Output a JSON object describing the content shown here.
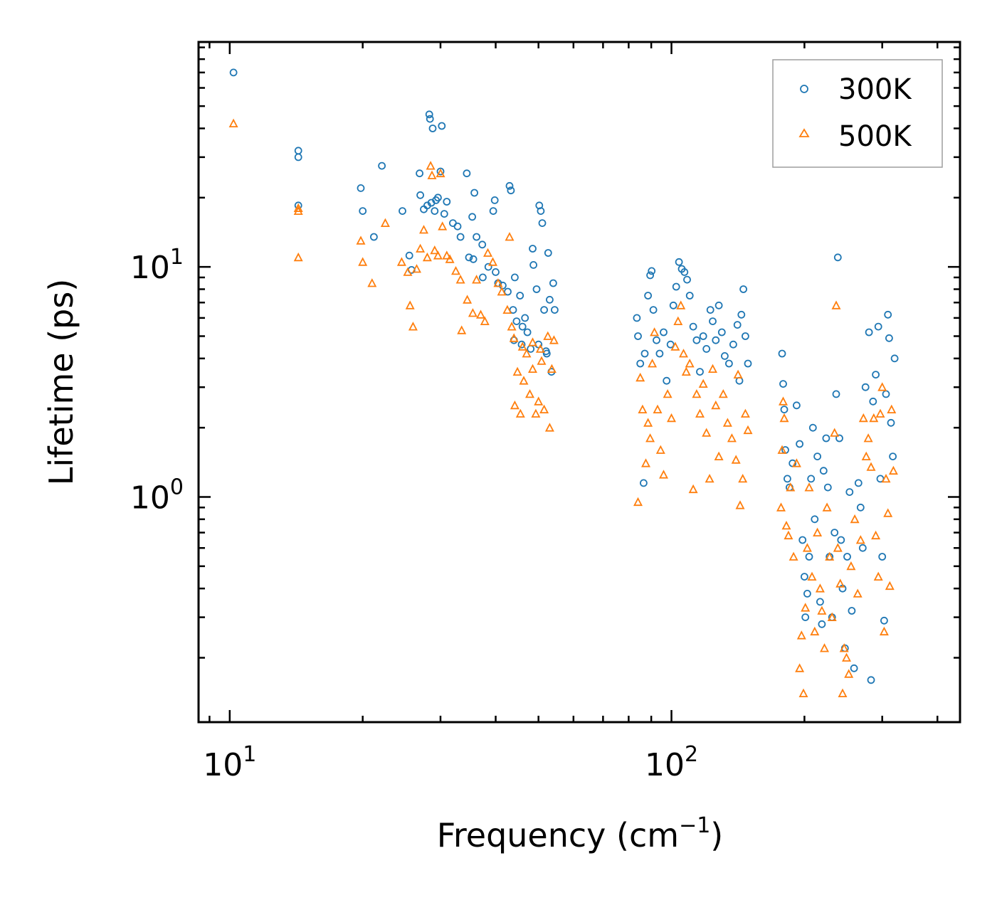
{
  "chart_data": {
    "type": "scatter",
    "xscale": "log",
    "yscale": "log",
    "xlim": [
      8.5,
      450
    ],
    "ylim": [
      0.105,
      95
    ],
    "xlabel": "Frequency",
    "xlabel_unit_base": "(cm",
    "xlabel_unit_exp": "−1",
    "xlabel_unit_end": ")",
    "ylabel": "Lifetime (ps)",
    "x_ticks": [
      {
        "value": 10,
        "base": "10",
        "exp": "1"
      },
      {
        "value": 100,
        "base": "10",
        "exp": "2"
      }
    ],
    "y_ticks": [
      {
        "value": 1,
        "base": "10",
        "exp": "0"
      },
      {
        "value": 10,
        "base": "10",
        "exp": "1"
      }
    ],
    "legend": {
      "position": "top-right"
    },
    "colors": {
      "s300": "#1f77b4",
      "s500": "#ff7f0e"
    },
    "series": [
      {
        "name": "300K",
        "marker": "circle",
        "color": "#1f77b4",
        "points": [
          [
            10.2,
            70
          ],
          [
            14.3,
            32
          ],
          [
            14.3,
            30
          ],
          [
            14.3,
            18.5
          ],
          [
            19.8,
            22
          ],
          [
            20,
            17.5
          ],
          [
            21.2,
            13.5
          ],
          [
            22.1,
            27.5
          ],
          [
            24.6,
            17.5
          ],
          [
            25.5,
            11.2
          ],
          [
            25.8,
            9.7
          ],
          [
            26.9,
            25.5
          ],
          [
            27,
            20.5
          ],
          [
            27.5,
            17.8
          ],
          [
            28,
            18.5
          ],
          [
            28.3,
            46
          ],
          [
            28.4,
            44
          ],
          [
            28.6,
            19
          ],
          [
            28.8,
            40
          ],
          [
            29.1,
            17.5
          ],
          [
            29.3,
            19.5
          ],
          [
            29.6,
            20
          ],
          [
            30,
            26
          ],
          [
            30.2,
            41
          ],
          [
            30.6,
            17
          ],
          [
            31,
            19.2
          ],
          [
            32,
            15.5
          ],
          [
            32.8,
            15
          ],
          [
            33.3,
            13.5
          ],
          [
            34.4,
            25.5
          ],
          [
            34.8,
            11
          ],
          [
            35.4,
            16.5
          ],
          [
            35.6,
            10.8
          ],
          [
            35.8,
            21
          ],
          [
            36.2,
            13.5
          ],
          [
            37.3,
            12.5
          ],
          [
            37.4,
            9
          ],
          [
            38.5,
            10
          ],
          [
            39.5,
            17.5
          ],
          [
            39.8,
            19.5
          ],
          [
            40,
            9.5
          ],
          [
            40.5,
            8.5
          ],
          [
            41.5,
            8.3
          ],
          [
            42.6,
            7.8
          ],
          [
            43,
            22.5
          ],
          [
            43.3,
            21.5
          ],
          [
            43.8,
            6.5
          ],
          [
            44.2,
            9
          ],
          [
            44.6,
            5.8
          ],
          [
            45.4,
            7.5
          ],
          [
            46,
            5.5
          ],
          [
            46.6,
            6
          ],
          [
            47.2,
            5.2
          ],
          [
            48.5,
            12
          ],
          [
            48.7,
            10.2
          ],
          [
            49.5,
            8
          ],
          [
            50.2,
            18.5
          ],
          [
            50.6,
            17.5
          ],
          [
            51,
            15.5
          ],
          [
            51.5,
            6.5
          ],
          [
            52,
            4.3
          ],
          [
            52.6,
            11.5
          ],
          [
            53,
            7.2
          ],
          [
            53.5,
            3.5
          ],
          [
            54,
            8.5
          ],
          [
            54.4,
            6.5
          ],
          [
            44,
            4.8
          ],
          [
            45.8,
            4.6
          ],
          [
            48,
            4.4
          ],
          [
            50,
            4.6
          ],
          [
            52.2,
            4.2
          ],
          [
            83.5,
            6
          ],
          [
            84,
            5
          ],
          [
            85,
            3.8
          ],
          [
            86.5,
            1.15
          ],
          [
            87,
            4.2
          ],
          [
            88.5,
            7.5
          ],
          [
            89.5,
            9.2
          ],
          [
            90.2,
            9.6
          ],
          [
            91,
            6.5
          ],
          [
            92.5,
            4.8
          ],
          [
            94,
            4.2
          ],
          [
            96,
            5.2
          ],
          [
            97.5,
            3.2
          ],
          [
            99.5,
            4.6
          ],
          [
            101,
            6.8
          ],
          [
            102.5,
            8.2
          ],
          [
            104,
            10.5
          ],
          [
            105.5,
            9.8
          ],
          [
            107,
            9.5
          ],
          [
            108.5,
            8.8
          ],
          [
            110,
            7.5
          ],
          [
            112,
            5.5
          ],
          [
            114,
            4.8
          ],
          [
            116,
            3.5
          ],
          [
            118,
            5
          ],
          [
            120,
            4.4
          ],
          [
            122.5,
            6.5
          ],
          [
            124,
            5.8
          ],
          [
            126,
            4.8
          ],
          [
            128,
            6.8
          ],
          [
            130,
            5.2
          ],
          [
            132,
            4.1
          ],
          [
            135,
            3.8
          ],
          [
            138,
            4.6
          ],
          [
            141,
            5.6
          ],
          [
            142.5,
            3.2
          ],
          [
            144,
            6.2
          ],
          [
            145.5,
            8
          ],
          [
            147,
            5
          ],
          [
            149,
            3.8
          ],
          [
            178,
            4.2
          ],
          [
            179,
            3.1
          ],
          [
            180,
            2.4
          ],
          [
            181,
            1.6
          ],
          [
            183,
            1.2
          ],
          [
            185,
            1.1
          ],
          [
            188,
            1.4
          ],
          [
            192,
            2.5
          ],
          [
            195,
            1.7
          ],
          [
            198,
            0.65
          ],
          [
            200,
            0.45
          ],
          [
            201,
            0.3
          ],
          [
            203,
            0.38
          ],
          [
            205,
            0.55
          ],
          [
            207,
            1.2
          ],
          [
            209,
            2
          ],
          [
            211,
            0.8
          ],
          [
            214,
            1.5
          ],
          [
            217,
            0.35
          ],
          [
            219,
            0.28
          ],
          [
            221,
            1.3
          ],
          [
            224,
            1.8
          ],
          [
            226,
            1.1
          ],
          [
            228,
            0.55
          ],
          [
            231,
            0.3
          ],
          [
            234,
            0.7
          ],
          [
            236,
            2.8
          ],
          [
            238,
            11
          ],
          [
            240,
            1.8
          ],
          [
            242,
            0.65
          ],
          [
            244,
            0.4
          ],
          [
            247,
            0.22
          ],
          [
            250,
            0.55
          ],
          [
            253,
            1.05
          ],
          [
            256,
            0.32
          ],
          [
            259,
            0.18
          ],
          [
            265,
            1.15
          ],
          [
            268,
            0.9
          ],
          [
            271,
            0.6
          ],
          [
            275,
            3
          ],
          [
            280,
            5.2
          ],
          [
            283,
            0.16
          ],
          [
            286,
            2.6
          ],
          [
            290,
            3.4
          ],
          [
            294,
            5.5
          ],
          [
            297,
            1.2
          ],
          [
            300,
            0.55
          ],
          [
            303,
            0.29
          ],
          [
            306,
            2.8
          ],
          [
            309,
            6.2
          ],
          [
            311,
            4.9
          ],
          [
            314,
            2.1
          ],
          [
            317,
            1.5
          ],
          [
            320,
            4
          ]
        ]
      },
      {
        "name": "500K",
        "marker": "triangle",
        "color": "#ff7f0e",
        "points": [
          [
            10.2,
            42
          ],
          [
            14.3,
            18
          ],
          [
            14.3,
            17.5
          ],
          [
            14.3,
            11
          ],
          [
            19.8,
            13
          ],
          [
            20,
            10.5
          ],
          [
            21,
            8.5
          ],
          [
            22.5,
            15.5
          ],
          [
            24.5,
            10.5
          ],
          [
            25.3,
            9.5
          ],
          [
            25.6,
            6.8
          ],
          [
            26,
            5.5
          ],
          [
            26.5,
            9.8
          ],
          [
            27,
            12
          ],
          [
            27.5,
            14.5
          ],
          [
            28,
            11
          ],
          [
            28.5,
            27.5
          ],
          [
            28.7,
            25
          ],
          [
            29.1,
            11.8
          ],
          [
            29.6,
            11.2
          ],
          [
            30,
            25.5
          ],
          [
            30.3,
            15
          ],
          [
            31,
            11.2
          ],
          [
            31.5,
            10.8
          ],
          [
            32.5,
            9.6
          ],
          [
            33.3,
            8.8
          ],
          [
            33.5,
            5.3
          ],
          [
            34.5,
            7.2
          ],
          [
            35.5,
            6.3
          ],
          [
            36.2,
            8.8
          ],
          [
            37,
            6.2
          ],
          [
            37.8,
            5.8
          ],
          [
            38.4,
            11.5
          ],
          [
            39.4,
            10.5
          ],
          [
            40.5,
            8.5
          ],
          [
            41.3,
            7.8
          ],
          [
            42.5,
            6.5
          ],
          [
            43,
            13.5
          ],
          [
            43.5,
            5.5
          ],
          [
            44.2,
            2.5
          ],
          [
            44.8,
            3.5
          ],
          [
            45.5,
            2.3
          ],
          [
            46.3,
            3.2
          ],
          [
            47,
            4.2
          ],
          [
            47.8,
            2.8
          ],
          [
            48.5,
            3.6
          ],
          [
            49.3,
            2.3
          ],
          [
            50,
            2.6
          ],
          [
            50.8,
            3.9
          ],
          [
            51.5,
            2.4
          ],
          [
            52.5,
            5
          ],
          [
            53,
            2
          ],
          [
            53.6,
            3.6
          ],
          [
            54.2,
            4.8
          ],
          [
            44,
            4.9
          ],
          [
            46,
            4.5
          ],
          [
            48.5,
            4.7
          ],
          [
            50.5,
            4.4
          ],
          [
            84,
            0.95
          ],
          [
            85,
            3.3
          ],
          [
            86,
            2.4
          ],
          [
            87.5,
            1.4
          ],
          [
            88.5,
            2.1
          ],
          [
            89.5,
            1.8
          ],
          [
            90.5,
            3.8
          ],
          [
            91.5,
            5.2
          ],
          [
            93,
            2.4
          ],
          [
            94.5,
            1.6
          ],
          [
            96,
            1.25
          ],
          [
            98,
            2.8
          ],
          [
            100,
            2.2
          ],
          [
            102,
            4.5
          ],
          [
            103.5,
            5.8
          ],
          [
            105,
            6.8
          ],
          [
            106.5,
            4.2
          ],
          [
            108,
            3.5
          ],
          [
            110,
            3.8
          ],
          [
            112,
            1.08
          ],
          [
            114,
            2.8
          ],
          [
            116,
            2.3
          ],
          [
            118,
            3.1
          ],
          [
            120,
            1.9
          ],
          [
            122,
            1.2
          ],
          [
            124,
            3.6
          ],
          [
            126,
            2.5
          ],
          [
            128,
            1.5
          ],
          [
            131,
            2.8
          ],
          [
            134,
            2.1
          ],
          [
            137,
            1.8
          ],
          [
            140,
            1.45
          ],
          [
            141.5,
            3.4
          ],
          [
            143,
            0.92
          ],
          [
            145,
            1.2
          ],
          [
            147,
            2.3
          ],
          [
            149,
            1.95
          ],
          [
            177,
            0.9
          ],
          [
            178,
            1.6
          ],
          [
            179,
            2.6
          ],
          [
            180,
            2.2
          ],
          [
            182,
            0.75
          ],
          [
            184,
            0.68
          ],
          [
            186,
            1.1
          ],
          [
            189,
            0.55
          ],
          [
            192,
            1.4
          ],
          [
            195,
            0.18
          ],
          [
            197,
            0.25
          ],
          [
            199,
            0.14
          ],
          [
            201,
            0.33
          ],
          [
            203,
            0.6
          ],
          [
            205,
            1.1
          ],
          [
            208,
            0.45
          ],
          [
            211,
            0.26
          ],
          [
            214,
            0.7
          ],
          [
            217,
            0.4
          ],
          [
            219,
            0.32
          ],
          [
            222,
            0.22
          ],
          [
            225,
            0.9
          ],
          [
            228,
            0.55
          ],
          [
            231,
            0.3
          ],
          [
            234,
            1.9
          ],
          [
            236,
            6.8
          ],
          [
            238,
            0.6
          ],
          [
            241,
            0.42
          ],
          [
            244,
            0.14
          ],
          [
            246,
            0.22
          ],
          [
            249,
            0.2
          ],
          [
            252,
            0.17
          ],
          [
            255,
            0.5
          ],
          [
            260,
            0.8
          ],
          [
            264,
            0.38
          ],
          [
            268,
            0.65
          ],
          [
            272,
            2.2
          ],
          [
            276,
            1.5
          ],
          [
            279,
            1.8
          ],
          [
            283,
            1.35
          ],
          [
            287,
            2.2
          ],
          [
            290,
            0.68
          ],
          [
            294,
            0.45
          ],
          [
            297,
            2.3
          ],
          [
            300,
            3
          ],
          [
            303,
            0.26
          ],
          [
            306,
            1.2
          ],
          [
            309,
            0.85
          ],
          [
            312,
            0.41
          ],
          [
            315,
            2.4
          ],
          [
            318,
            1.3
          ]
        ]
      }
    ]
  }
}
